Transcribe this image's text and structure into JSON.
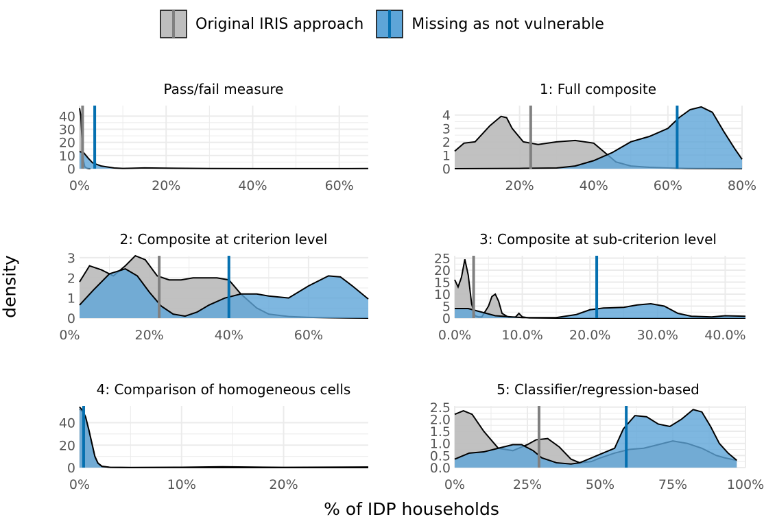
{
  "legend": [
    {
      "label": "Original IRIS approach",
      "fill": "#bebebe",
      "line": "#808080"
    },
    {
      "label": "Missing as not vulnerable",
      "fill": "#6baed6",
      "line": "#0570b0"
    }
  ],
  "ylabel": "density",
  "xlabel": "% of IDP households",
  "colors": {
    "grey_fill": "#bebebe",
    "grey_line": "#808080",
    "blue_fill": "#5ea5d8",
    "blue_line": "#0570b0",
    "grid": "#ebebeb",
    "outline": "#000000"
  },
  "chart_data": [
    {
      "type": "area",
      "title": "Pass/fail measure",
      "xlim": [
        0,
        0.667
      ],
      "ylim": [
        0,
        48
      ],
      "xticks": [
        0,
        0.2,
        0.4,
        0.6
      ],
      "xtick_labels": [
        "0%",
        "20%",
        "40%",
        "60%"
      ],
      "yticks": [
        0,
        10,
        20,
        30,
        40
      ],
      "ytick_labels": [
        "0",
        "10",
        "20",
        "30",
        "40"
      ],
      "series": [
        {
          "name": "Original IRIS approach",
          "x": [
            0,
            0.003,
            0.006,
            0.009,
            0.012,
            0.016,
            0.02,
            0.025
          ],
          "y": [
            46,
            40,
            20,
            6,
            1.5,
            0.5,
            0.1,
            0
          ],
          "mean": 0.007
        },
        {
          "name": "Missing as not vulnerable",
          "x": [
            0,
            0.01,
            0.02,
            0.03,
            0.05,
            0.08,
            0.1,
            0.12,
            0.15,
            0.2,
            0.3,
            0.45,
            0.6,
            0.667
          ],
          "y": [
            13,
            12,
            8,
            4.5,
            2,
            0.5,
            0.2,
            0.3,
            0.6,
            0.4,
            0.15,
            0.05,
            0.05,
            0.1
          ],
          "mean": 0.035
        }
      ]
    },
    {
      "type": "area",
      "title": "1: Full composite",
      "xlim": [
        0.025,
        0.8
      ],
      "ylim": [
        0,
        4.7
      ],
      "xticks": [
        0.2,
        0.4,
        0.6,
        0.8
      ],
      "xtick_labels": [
        "20%",
        "40%",
        "60%",
        "80%"
      ],
      "yticks": [
        0,
        1,
        2,
        3,
        4
      ],
      "ytick_labels": [
        "0",
        "1",
        "2",
        "3",
        "4"
      ],
      "series": [
        {
          "name": "Original IRIS approach",
          "x": [
            0.025,
            0.05,
            0.08,
            0.12,
            0.15,
            0.165,
            0.18,
            0.21,
            0.25,
            0.3,
            0.35,
            0.4,
            0.43,
            0.46,
            0.5,
            0.55,
            0.6,
            0.65,
            0.7,
            0.8
          ],
          "y": [
            1.3,
            1.9,
            2.0,
            3.2,
            3.9,
            3.8,
            3.0,
            2.0,
            1.8,
            2.0,
            2.1,
            1.9,
            1.2,
            0.5,
            0.2,
            0.1,
            0.05,
            0.02,
            0.01,
            0
          ],
          "mean": 0.23
        },
        {
          "name": "Missing as not vulnerable",
          "x": [
            0.025,
            0.2,
            0.3,
            0.35,
            0.4,
            0.45,
            0.5,
            0.55,
            0.6,
            0.63,
            0.66,
            0.69,
            0.72,
            0.75,
            0.78,
            0.8
          ],
          "y": [
            0,
            0.02,
            0.05,
            0.2,
            0.6,
            1.2,
            2.0,
            2.4,
            3.0,
            3.8,
            4.4,
            4.6,
            4.2,
            2.8,
            1.5,
            0.7
          ],
          "mean": 0.625
        }
      ]
    },
    {
      "type": "area",
      "title": "2: Composite at criterion level",
      "xlim": [
        0.025,
        0.75
      ],
      "ylim": [
        0,
        3.1
      ],
      "xticks": [
        0,
        0.2,
        0.4,
        0.6
      ],
      "xtick_labels": [
        "0%",
        "20%",
        "40%",
        "60%"
      ],
      "yticks": [
        0,
        1,
        2,
        3
      ],
      "ytick_labels": [
        "0",
        "1",
        "2",
        "3"
      ],
      "series": [
        {
          "name": "Original IRIS approach",
          "x": [
            0.025,
            0.05,
            0.08,
            0.11,
            0.14,
            0.165,
            0.19,
            0.22,
            0.25,
            0.28,
            0.31,
            0.34,
            0.37,
            0.4,
            0.43,
            0.47,
            0.5,
            0.55,
            0.6,
            0.65,
            0.7,
            0.75
          ],
          "y": [
            1.8,
            2.6,
            2.4,
            2.1,
            2.6,
            3.1,
            2.9,
            2.1,
            1.9,
            1.9,
            2.0,
            2.0,
            2.0,
            1.9,
            1.2,
            0.5,
            0.2,
            0.08,
            0.04,
            0.02,
            0.01,
            0
          ],
          "mean": 0.225
        },
        {
          "name": "Missing as not vulnerable",
          "x": [
            0.025,
            0.06,
            0.1,
            0.14,
            0.17,
            0.2,
            0.23,
            0.26,
            0.29,
            0.32,
            0.35,
            0.39,
            0.43,
            0.47,
            0.5,
            0.55,
            0.6,
            0.65,
            0.68,
            0.71,
            0.75
          ],
          "y": [
            0.65,
            1.4,
            2.2,
            2.45,
            2.1,
            1.3,
            0.6,
            0.2,
            0.1,
            0.3,
            0.65,
            1.0,
            1.2,
            1.2,
            1.1,
            1.0,
            1.6,
            2.1,
            2.05,
            1.6,
            0.95
          ],
          "mean": 0.4
        }
      ]
    },
    {
      "type": "area",
      "title": "3: Composite at sub-criterion level",
      "xlim": [
        0,
        0.43
      ],
      "ylim": [
        0,
        26
      ],
      "xticks": [
        0,
        0.1,
        0.2,
        0.3,
        0.4
      ],
      "xtick_labels": [
        "0.0%",
        "10.0%",
        "20.0%",
        "30.0%",
        "40.0%"
      ],
      "yticks": [
        0,
        5,
        10,
        15,
        20,
        25
      ],
      "ytick_labels": [
        "0",
        "5",
        "10",
        "15",
        "20",
        "25"
      ],
      "series": [
        {
          "name": "Original IRIS approach",
          "x": [
            0,
            0.005,
            0.01,
            0.015,
            0.02,
            0.025,
            0.03,
            0.035,
            0.04,
            0.05,
            0.055,
            0.06,
            0.065,
            0.07,
            0.08,
            0.09,
            0.095,
            0.1,
            0.11,
            0.15,
            0.43
          ],
          "y": [
            16,
            13,
            17,
            24.5,
            18,
            6,
            1,
            0.5,
            0.5,
            5,
            9,
            10,
            7,
            2,
            0.3,
            0.5,
            2,
            0.5,
            0.1,
            0,
            0
          ],
          "mean": 0.028
        },
        {
          "name": "Missing as not vulnerable",
          "x": [
            0,
            0.02,
            0.04,
            0.06,
            0.1,
            0.15,
            0.18,
            0.2,
            0.22,
            0.25,
            0.27,
            0.29,
            0.31,
            0.33,
            0.35,
            0.38,
            0.4,
            0.43
          ],
          "y": [
            4,
            4,
            2.5,
            1,
            0.2,
            0.2,
            1.5,
            3.5,
            4.2,
            4.5,
            5.5,
            6,
            5,
            2,
            0.8,
            0.5,
            1,
            0.8
          ],
          "mean": 0.21
        }
      ]
    },
    {
      "type": "area",
      "title": "4: Comparison of homogeneous cells",
      "xlim": [
        0,
        0.283
      ],
      "ylim": [
        0,
        55
      ],
      "xticks": [
        0,
        0.1,
        0.2
      ],
      "xtick_labels": [
        "0%",
        "10%",
        "20%"
      ],
      "yticks": [
        0,
        20,
        40
      ],
      "ytick_labels": [
        "0",
        "20",
        "40"
      ],
      "series": [
        {
          "name": "Original IRIS approach",
          "x": [
            0,
            0.003,
            0.006,
            0.009,
            0.012,
            0.015,
            0.018,
            0.022,
            0.03,
            0.05,
            0.1,
            0.14,
            0.2,
            0.283
          ],
          "y": [
            52,
            50,
            44,
            34,
            22,
            10,
            4,
            1.2,
            0.2,
            0.1,
            0.3,
            0.8,
            0.2,
            0.5
          ],
          "mean": 0.004
        },
        {
          "name": "Missing as not vulnerable",
          "x": [
            0,
            0.003,
            0.006,
            0.009,
            0.012,
            0.015,
            0.018,
            0.022,
            0.03,
            0.05,
            0.283
          ],
          "y": [
            54,
            51,
            45,
            34,
            22,
            10,
            4,
            1,
            0.2,
            0.05,
            0
          ],
          "mean": 0.004
        }
      ]
    },
    {
      "type": "area",
      "title": "5: Classifier/regression-based",
      "xlim": [
        0,
        1.0
      ],
      "ylim": [
        0,
        2.55
      ],
      "xticks": [
        0,
        0.25,
        0.5,
        0.75,
        1.0
      ],
      "xtick_labels": [
        "0%",
        "25%",
        "50%",
        "75%",
        "100%"
      ],
      "yticks": [
        0,
        0.5,
        1.0,
        1.5,
        2.0,
        2.5
      ],
      "ytick_labels": [
        "0.0",
        "0.5",
        "1.0",
        "1.5",
        "2.0",
        "2.5"
      ],
      "series": [
        {
          "name": "Original IRIS approach",
          "x": [
            0,
            0.03,
            0.06,
            0.1,
            0.15,
            0.2,
            0.25,
            0.28,
            0.32,
            0.36,
            0.4,
            0.43,
            0.47,
            0.5,
            0.55,
            0.6,
            0.65,
            0.7,
            0.75,
            0.8,
            0.85,
            0.9,
            0.93,
            0.97
          ],
          "y": [
            2.2,
            2.35,
            2.2,
            1.5,
            0.8,
            0.7,
            0.95,
            1.15,
            1.2,
            0.85,
            0.35,
            0.2,
            0.25,
            0.4,
            0.6,
            0.75,
            0.8,
            0.95,
            1.1,
            1.0,
            0.8,
            0.5,
            0.4,
            0.3
          ],
          "mean": 0.29
        },
        {
          "name": "Missing as not vulnerable",
          "x": [
            0,
            0.05,
            0.1,
            0.15,
            0.2,
            0.23,
            0.27,
            0.3,
            0.35,
            0.4,
            0.43,
            0.47,
            0.5,
            0.55,
            0.58,
            0.62,
            0.66,
            0.7,
            0.74,
            0.78,
            0.82,
            0.85,
            0.88,
            0.91,
            0.94,
            0.97
          ],
          "y": [
            0.35,
            0.6,
            0.65,
            0.8,
            0.95,
            0.95,
            0.7,
            0.4,
            0.2,
            0.15,
            0.2,
            0.4,
            0.55,
            0.8,
            1.6,
            2.15,
            2.1,
            1.8,
            1.7,
            2.0,
            2.4,
            2.3,
            1.7,
            1.0,
            0.6,
            0.3
          ],
          "mean": 0.59
        }
      ]
    }
  ]
}
